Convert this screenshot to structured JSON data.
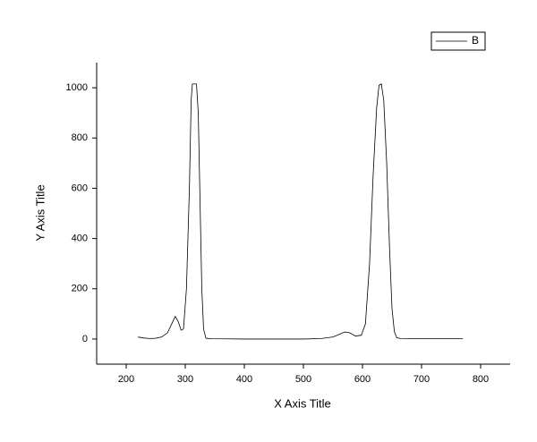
{
  "chart_data": {
    "type": "line",
    "xlabel": "X Axis Title",
    "ylabel": "Y Axis Title",
    "x": [
      220,
      230,
      240,
      250,
      260,
      270,
      278,
      283,
      288,
      293,
      297,
      302,
      307,
      310,
      312,
      319,
      322,
      325,
      328,
      331,
      335,
      345,
      400,
      500,
      530,
      550,
      560,
      570,
      578,
      588,
      598,
      605,
      612,
      618,
      624,
      628,
      632,
      636,
      641,
      646,
      650,
      654,
      658,
      665,
      700,
      770
    ],
    "series": [
      {
        "name": "B",
        "color": "#000000",
        "values": [
          8,
          4,
          2,
          3,
          8,
          25,
          65,
          90,
          70,
          35,
          40,
          200,
          600,
          950,
          1015,
          1015,
          900,
          550,
          200,
          40,
          3,
          1,
          0,
          0,
          2,
          8,
          18,
          28,
          25,
          12,
          15,
          60,
          300,
          650,
          920,
          1010,
          1015,
          950,
          700,
          350,
          120,
          30,
          5,
          2,
          1,
          1
        ]
      }
    ],
    "xlim": [
      150,
      850
    ],
    "xticks": [
      200,
      300,
      400,
      500,
      600,
      700,
      800
    ],
    "ylim": [
      -100,
      1100
    ],
    "yticks": [
      0,
      200,
      400,
      600,
      800,
      1000
    ],
    "legend": "top-right"
  }
}
